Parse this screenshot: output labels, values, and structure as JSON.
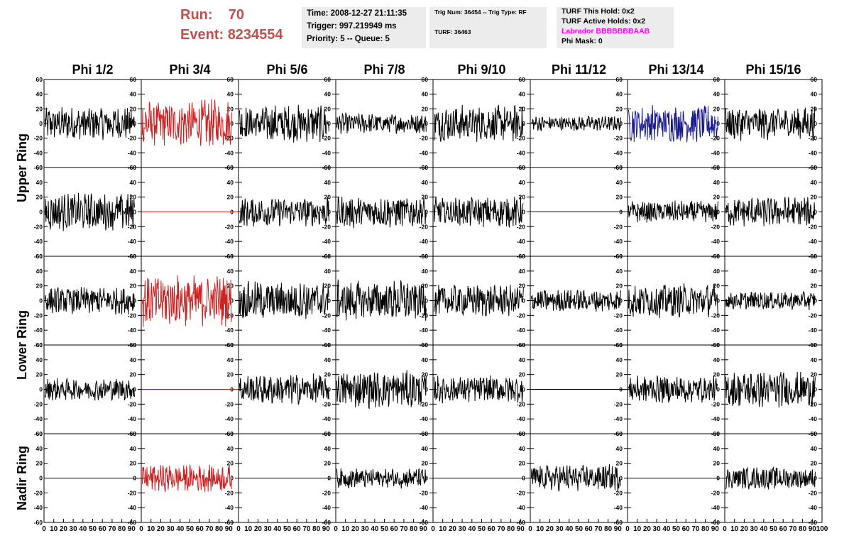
{
  "header": {
    "run_label": "Run:",
    "run_value": "70",
    "event_label": "Event:",
    "event_value": "8234554",
    "box1": [
      "Time: 2008-12-27 21:11:35",
      "Trigger: 997.219949 ms",
      "Priority: 5 -- Queue: 5"
    ],
    "box2": [
      "Trig Num: 36454 -- Trig Type: RF",
      "TURF: 36463"
    ],
    "box3": [
      "TURF This Hold: 0x2",
      "TURF Active Holds: 0x2",
      "Labrador BBBBBBBAAB",
      "Phi Mask: 0"
    ]
  },
  "colors": {
    "run_text": "#c0504d",
    "labrador_text": "#ff00ff",
    "trace_black": "#000000",
    "trace_red": "#cc2222",
    "trace_blue": "#1a1a8c",
    "info_bg": "#ececec"
  },
  "chart_data": {
    "type": "line",
    "column_titles": [
      "Phi 1/2",
      "Phi 3/4",
      "Phi 5/6",
      "Phi 7/8",
      "Phi 9/10",
      "Phi 11/12",
      "Phi 13/14",
      "Phi 15/16"
    ],
    "ring_titles": [
      "Upper Ring",
      "Lower Ring",
      "Nadir Ring"
    ],
    "xlim": [
      0,
      100
    ],
    "ylim": [
      -60,
      60
    ],
    "y_ticks": [
      60,
      40,
      20,
      0,
      -20,
      -40,
      -60
    ],
    "x_ticks": [
      "0",
      "10",
      "20",
      "30",
      "40",
      "50",
      "60",
      "70",
      "80",
      "90",
      "100"
    ],
    "grid": false,
    "panel_rows": [
      [
        {
          "a": 20,
          "c": "black"
        },
        {
          "a": 28,
          "c": "red"
        },
        {
          "a": 22,
          "c": "black"
        },
        {
          "a": 12,
          "c": "black"
        },
        {
          "a": 22,
          "c": "black"
        },
        {
          "a": 9,
          "c": "black"
        },
        {
          "a": 22,
          "c": "blue"
        },
        {
          "a": 20,
          "c": "black"
        }
      ],
      [
        {
          "a": 22,
          "c": "black"
        },
        {
          "a": 0,
          "c": "red"
        },
        {
          "a": 17,
          "c": "black"
        },
        {
          "a": 19,
          "c": "black"
        },
        {
          "a": 18,
          "c": "black"
        },
        {
          "a": 0,
          "c": "black"
        },
        {
          "a": 13,
          "c": "black"
        },
        {
          "a": 18,
          "c": "black"
        }
      ],
      [
        {
          "a": 16,
          "c": "black"
        },
        {
          "a": 30,
          "c": "red"
        },
        {
          "a": 23,
          "c": "black"
        },
        {
          "a": 24,
          "c": "black"
        },
        {
          "a": 19,
          "c": "black"
        },
        {
          "a": 13,
          "c": "black"
        },
        {
          "a": 20,
          "c": "black"
        },
        {
          "a": 11,
          "c": "black"
        }
      ],
      [
        {
          "a": 13,
          "c": "black"
        },
        {
          "a": 0,
          "c": "red"
        },
        {
          "a": 18,
          "c": "black"
        },
        {
          "a": 22,
          "c": "black"
        },
        {
          "a": 16,
          "c": "black"
        },
        {
          "a": 0,
          "c": "black"
        },
        {
          "a": 16,
          "c": "black"
        },
        {
          "a": 21,
          "c": "black"
        }
      ],
      [
        {
          "a": 0,
          "c": "black"
        },
        {
          "a": 16,
          "c": "red"
        },
        {
          "a": 0,
          "c": "black"
        },
        {
          "a": 12,
          "c": "black"
        },
        {
          "a": 0,
          "c": "black"
        },
        {
          "a": 16,
          "c": "black"
        },
        {
          "a": 0,
          "c": "black"
        },
        {
          "a": 13,
          "c": "black"
        }
      ]
    ]
  }
}
